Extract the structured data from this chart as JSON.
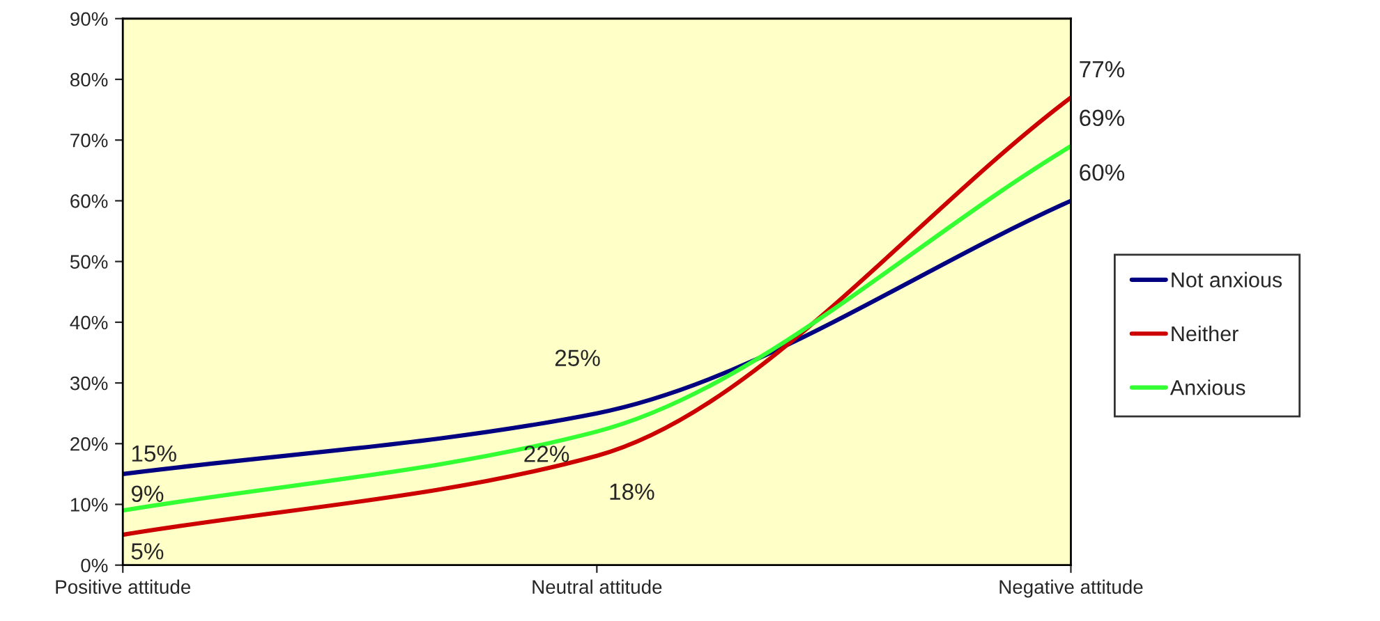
{
  "chart_data": {
    "type": "line",
    "categories": [
      "Positive attitude",
      "Neutral attitude",
      "Negative attitude"
    ],
    "series": [
      {
        "name": "Not anxious",
        "color": "#000080",
        "values": [
          15,
          25,
          60
        ],
        "value_labels": [
          "15%",
          "25%",
          "60%"
        ]
      },
      {
        "name": "Neither",
        "color": "#cc0000",
        "values": [
          5,
          18,
          77
        ],
        "value_labels": [
          "5%",
          "18%",
          "77%"
        ]
      },
      {
        "name": "Anxious",
        "color": "#33ff33",
        "values": [
          9,
          22,
          69
        ],
        "value_labels": [
          "9%",
          "22%",
          "69%"
        ]
      }
    ],
    "ylim": [
      0,
      90
    ],
    "yticks": [
      {
        "value": 0,
        "label": "0%"
      },
      {
        "value": 10,
        "label": "10%"
      },
      {
        "value": 20,
        "label": "20%"
      },
      {
        "value": 30,
        "label": "30%"
      },
      {
        "value": 40,
        "label": "40%"
      },
      {
        "value": 50,
        "label": "50%"
      },
      {
        "value": 60,
        "label": "60%"
      },
      {
        "value": 70,
        "label": "70%"
      },
      {
        "value": 80,
        "label": "80%"
      },
      {
        "value": 90,
        "label": "90%"
      }
    ],
    "data_labels": true,
    "legend": "right",
    "grid": false,
    "marker": "none",
    "line_style": "solid"
  }
}
